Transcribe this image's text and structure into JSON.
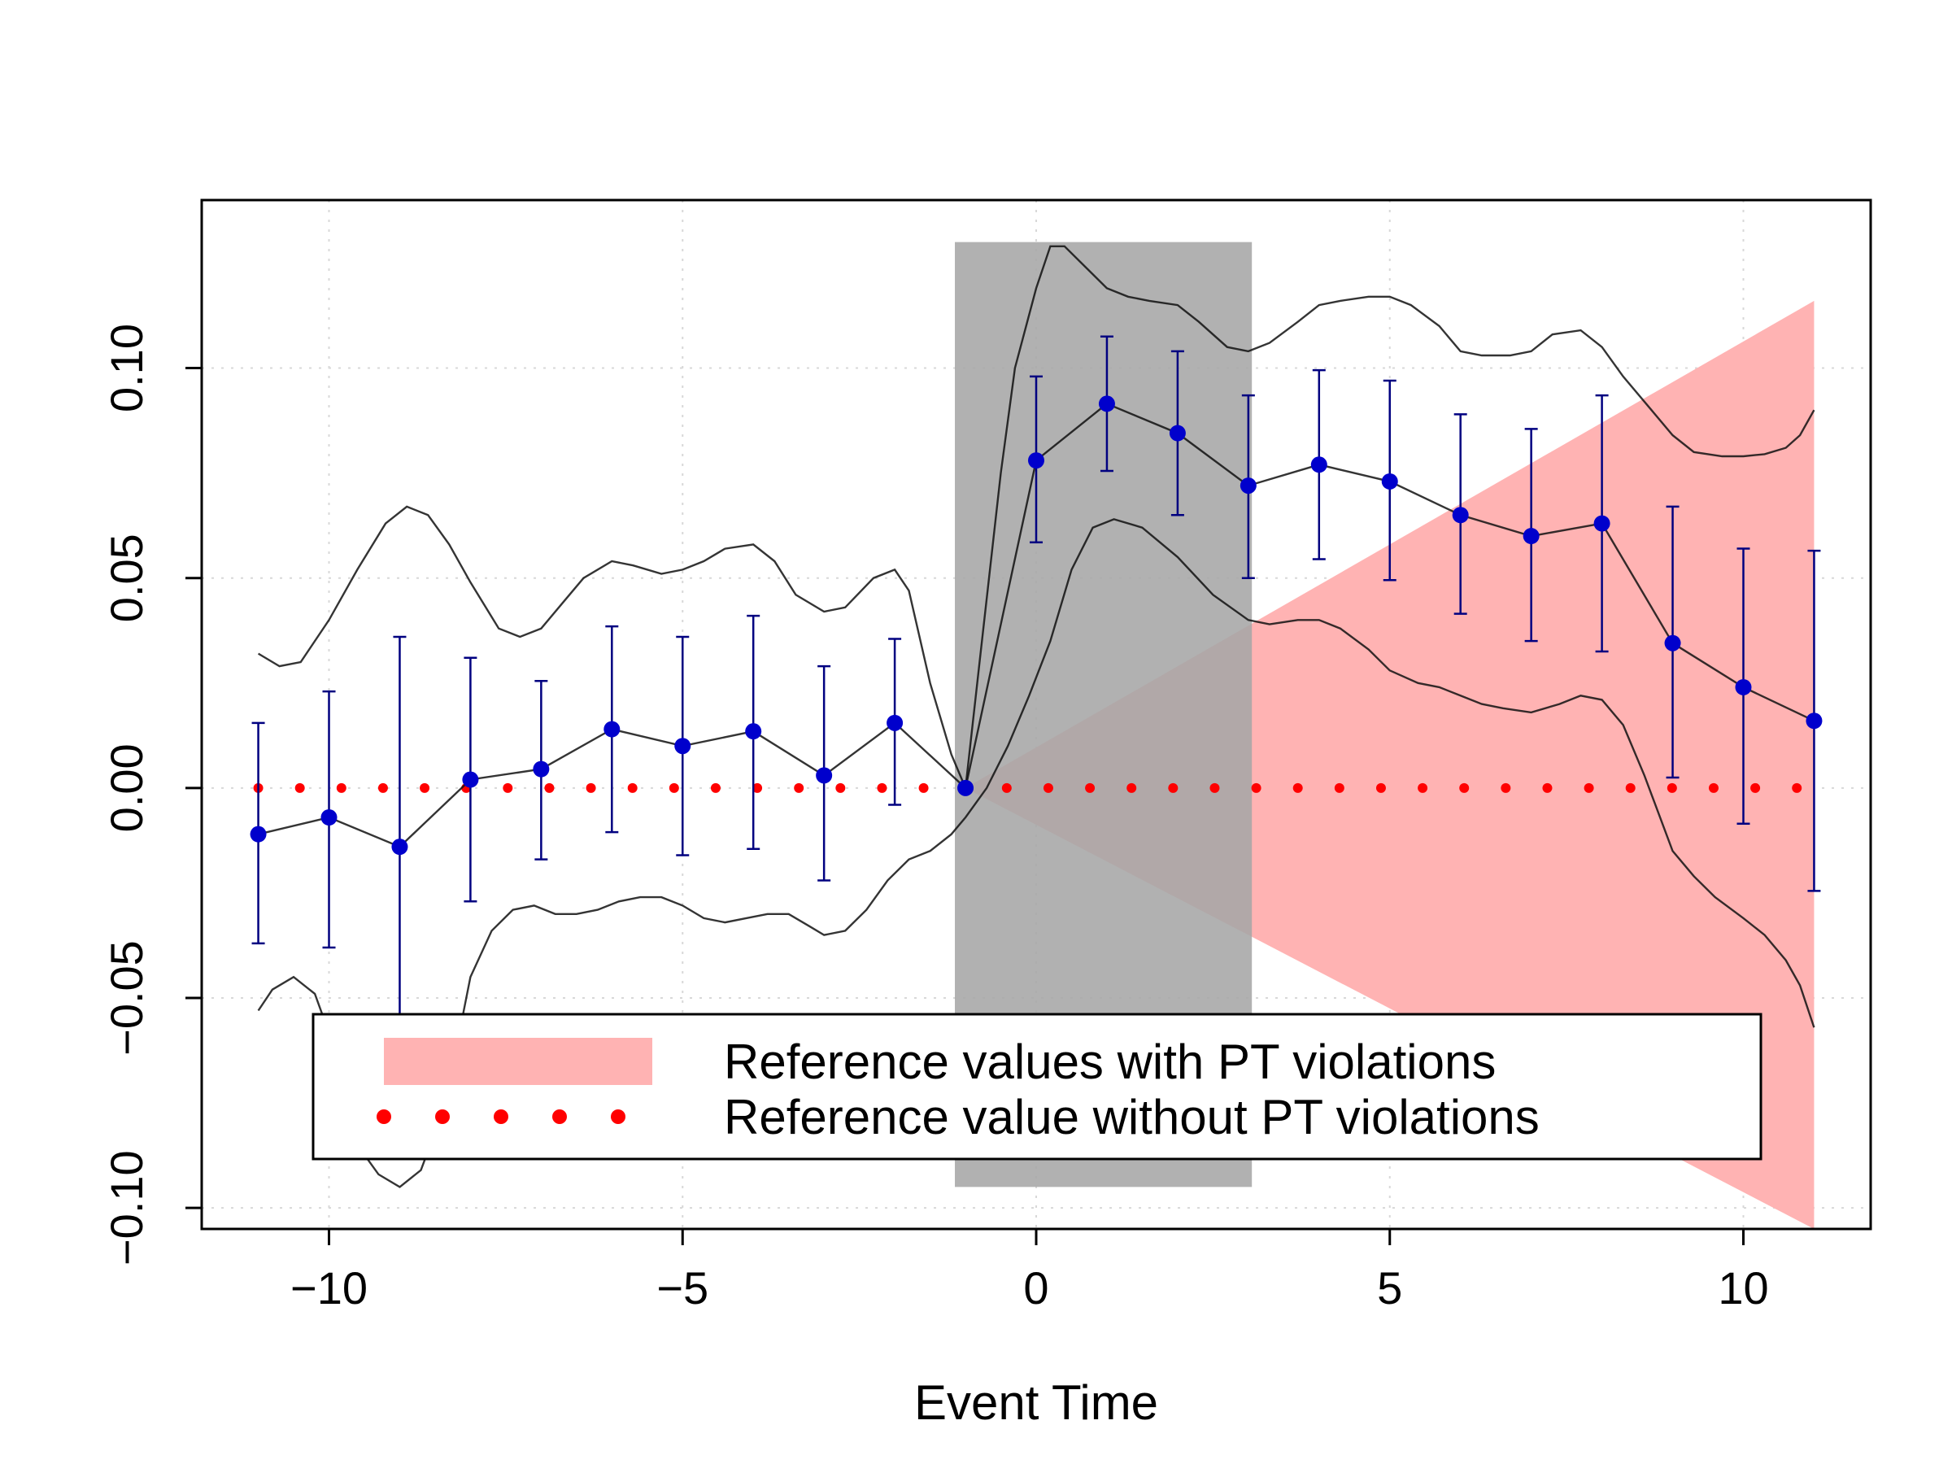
{
  "chart_data": {
    "type": "scatter",
    "title": "",
    "xlabel": "Event Time",
    "ylabel": "",
    "xlim": [
      -11.8,
      11.8
    ],
    "ylim": [
      -0.105,
      0.14
    ],
    "x_ticks": [
      -10,
      -5,
      0,
      5,
      10
    ],
    "x_tick_labels": [
      "−10",
      "−5",
      "0",
      "5",
      "10"
    ],
    "y_ticks": [
      -0.1,
      -0.05,
      0.0,
      0.05,
      0.1
    ],
    "y_tick_labels": [
      "−0.10",
      "−0.05",
      "0.00",
      "0.05",
      "0.10"
    ],
    "grid": true,
    "legend_position": "bottom",
    "colors": {
      "points": "#0000cc",
      "error_bars": "#000080",
      "curves": "#111111",
      "pt_region": "#ffb3b3",
      "reference_dots": "#ff0000",
      "shaded_window": "#a6a6a6"
    },
    "shaded_window": {
      "x_start": -1.15,
      "x_end": 3.05,
      "y_bottom": -0.095,
      "y_top": 0.13
    },
    "pt_violation_region": {
      "vertex": [
        -1,
        0.0
      ],
      "x_end": 11,
      "upper_at_end": 0.116,
      "lower_at_end": -0.105
    },
    "reference_line": {
      "y": 0.0,
      "x_start": -11,
      "x_end": 11,
      "step": 0.588
    },
    "series": [
      {
        "name": "estimates",
        "x": [
          -11,
          -10,
          -9,
          -8,
          -7,
          -6,
          -5,
          -4,
          -3,
          -2,
          -1,
          0,
          1,
          2,
          3,
          4,
          5,
          6,
          7,
          8,
          9,
          10,
          11
        ],
        "y": [
          -0.011,
          -0.007,
          -0.014,
          0.002,
          0.0045,
          0.014,
          0.01,
          0.0135,
          0.003,
          0.0155,
          0.0,
          0.078,
          0.0915,
          0.0845,
          0.072,
          0.077,
          0.073,
          0.065,
          0.06,
          0.063,
          0.0345,
          0.024,
          0.016
        ],
        "ci_low": [
          -0.037,
          -0.038,
          -0.064,
          -0.027,
          -0.017,
          -0.0105,
          -0.016,
          -0.0145,
          -0.022,
          -0.004,
          0.0,
          0.0585,
          0.0755,
          0.065,
          0.05,
          0.0545,
          0.0495,
          0.0415,
          0.035,
          0.0325,
          0.0025,
          -0.0085,
          -0.0245
        ],
        "ci_high": [
          0.0155,
          0.023,
          0.036,
          0.031,
          0.0255,
          0.0385,
          0.036,
          0.041,
          0.029,
          0.0355,
          0.0,
          0.098,
          0.1075,
          0.104,
          0.0935,
          0.0995,
          0.097,
          0.089,
          0.0855,
          0.0935,
          0.067,
          0.057,
          0.0565
        ]
      },
      {
        "name": "upper_band",
        "x": [
          -11,
          -10.7,
          -10.4,
          -10,
          -9.6,
          -9.2,
          -8.9,
          -8.6,
          -8.3,
          -8,
          -7.6,
          -7.3,
          -7,
          -6.7,
          -6.4,
          -6,
          -5.7,
          -5.3,
          -5,
          -4.7,
          -4.4,
          -4,
          -3.7,
          -3.4,
          -3,
          -2.7,
          -2.3,
          -2,
          -1.8,
          -1.5,
          -1.2,
          -1,
          -0.8,
          -0.5,
          -0.3,
          0,
          0.2,
          0.4,
          0.7,
          1,
          1.3,
          1.6,
          2,
          2.3,
          2.7,
          3,
          3.3,
          3.7,
          4,
          4.3,
          4.7,
          5,
          5.3,
          5.7,
          6,
          6.3,
          6.7,
          7,
          7.3,
          7.7,
          8,
          8.3,
          8.7,
          9,
          9.3,
          9.7,
          10,
          10.3,
          10.6,
          10.8,
          11
        ],
        "y": [
          0.032,
          0.029,
          0.03,
          0.04,
          0.052,
          0.063,
          0.067,
          0.065,
          0.058,
          0.049,
          0.038,
          0.036,
          0.038,
          0.044,
          0.05,
          0.054,
          0.053,
          0.051,
          0.052,
          0.054,
          0.057,
          0.058,
          0.054,
          0.046,
          0.042,
          0.043,
          0.05,
          0.052,
          0.047,
          0.025,
          0.008,
          0.0,
          0.03,
          0.075,
          0.1,
          0.119,
          0.129,
          0.129,
          0.124,
          0.119,
          0.117,
          0.116,
          0.115,
          0.111,
          0.105,
          0.104,
          0.106,
          0.111,
          0.115,
          0.116,
          0.117,
          0.117,
          0.115,
          0.11,
          0.104,
          0.103,
          0.103,
          0.104,
          0.108,
          0.109,
          0.105,
          0.098,
          0.09,
          0.084,
          0.08,
          0.079,
          0.079,
          0.0795,
          0.081,
          0.084,
          0.09
        ]
      },
      {
        "name": "lower_band",
        "x": [
          -11,
          -10.8,
          -10.5,
          -10.2,
          -9.9,
          -9.6,
          -9.3,
          -9,
          -8.7,
          -8.5,
          -8.2,
          -8,
          -7.7,
          -7.4,
          -7.1,
          -6.8,
          -6.5,
          -6.2,
          -5.9,
          -5.6,
          -5.3,
          -5,
          -4.7,
          -4.4,
          -4.1,
          -3.8,
          -3.5,
          -3.2,
          -3,
          -2.7,
          -2.4,
          -2.1,
          -1.8,
          -1.5,
          -1.2,
          -1,
          -0.7,
          -0.4,
          -0.1,
          0.2,
          0.5,
          0.8,
          1.1,
          1.5,
          2,
          2.5,
          3,
          3.3,
          3.7,
          4,
          4.3,
          4.7,
          5,
          5.4,
          5.7,
          6,
          6.3,
          6.6,
          7,
          7.4,
          7.7,
          8,
          8.3,
          8.6,
          9,
          9.3,
          9.6,
          10,
          10.3,
          10.6,
          10.8,
          11
        ],
        "y": [
          -0.053,
          -0.048,
          -0.045,
          -0.049,
          -0.063,
          -0.085,
          -0.092,
          -0.095,
          -0.091,
          -0.082,
          -0.062,
          -0.045,
          -0.034,
          -0.029,
          -0.028,
          -0.03,
          -0.03,
          -0.029,
          -0.027,
          -0.026,
          -0.026,
          -0.028,
          -0.031,
          -0.032,
          -0.031,
          -0.03,
          -0.03,
          -0.033,
          -0.035,
          -0.034,
          -0.029,
          -0.022,
          -0.017,
          -0.015,
          -0.011,
          -0.007,
          0.0,
          0.01,
          0.022,
          0.035,
          0.052,
          0.062,
          0.064,
          0.062,
          0.055,
          0.046,
          0.04,
          0.039,
          0.04,
          0.04,
          0.038,
          0.033,
          0.028,
          0.025,
          0.024,
          0.022,
          0.02,
          0.019,
          0.018,
          0.02,
          0.022,
          0.021,
          0.015,
          0.003,
          -0.015,
          -0.021,
          -0.026,
          -0.031,
          -0.035,
          -0.041,
          -0.047,
          -0.057
        ]
      }
    ],
    "legend": [
      {
        "label": "Reference values with PT violations",
        "symbol": "band"
      },
      {
        "label": "Reference value without PT violations",
        "symbol": "dots"
      }
    ]
  }
}
